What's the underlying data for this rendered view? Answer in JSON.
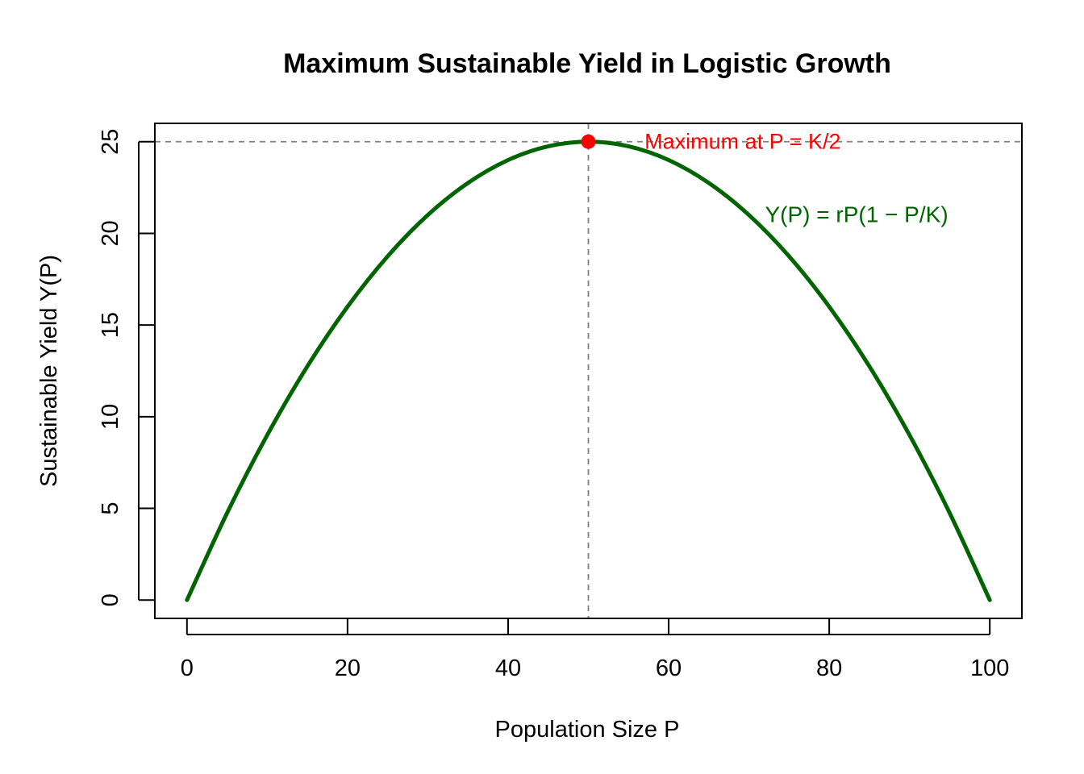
{
  "chart_data": {
    "type": "line",
    "title": "Maximum Sustainable Yield in Logistic Growth",
    "xlabel": "Population Size P",
    "ylabel": "Sustainable Yield Y(P)",
    "xlim": [
      0,
      100
    ],
    "ylim": [
      0,
      25
    ],
    "x_ticks": [
      0,
      20,
      40,
      60,
      80,
      100
    ],
    "y_ticks": [
      0,
      5,
      10,
      15,
      20,
      25
    ],
    "series": [
      {
        "x": [
          0,
          5,
          10,
          15,
          20,
          25,
          30,
          35,
          40,
          45,
          50,
          55,
          60,
          65,
          70,
          75,
          80,
          85,
          90,
          95,
          100
        ],
        "y": [
          0,
          4.75,
          9,
          12.75,
          16,
          18.75,
          21,
          22.75,
          24,
          24.75,
          25,
          24.75,
          24,
          22.75,
          21,
          18.75,
          16,
          12.75,
          9,
          4.75,
          0
        ],
        "color": "#006400"
      }
    ],
    "maximum_point": {
      "x": 50,
      "y": 25,
      "color": "#ff0000"
    },
    "reference_lines": {
      "vertical_x": 50,
      "horizontal_y": 25,
      "color": "#808080",
      "style": "dashed"
    },
    "annotations": [
      {
        "text": "Maximum at P = K/2",
        "x": 57,
        "y": 25,
        "color": "#ff0000"
      },
      {
        "text": "Y(P) = rP(1 − P/K)",
        "x": 72,
        "y": 21,
        "color": "#006400"
      }
    ],
    "grid": false
  }
}
